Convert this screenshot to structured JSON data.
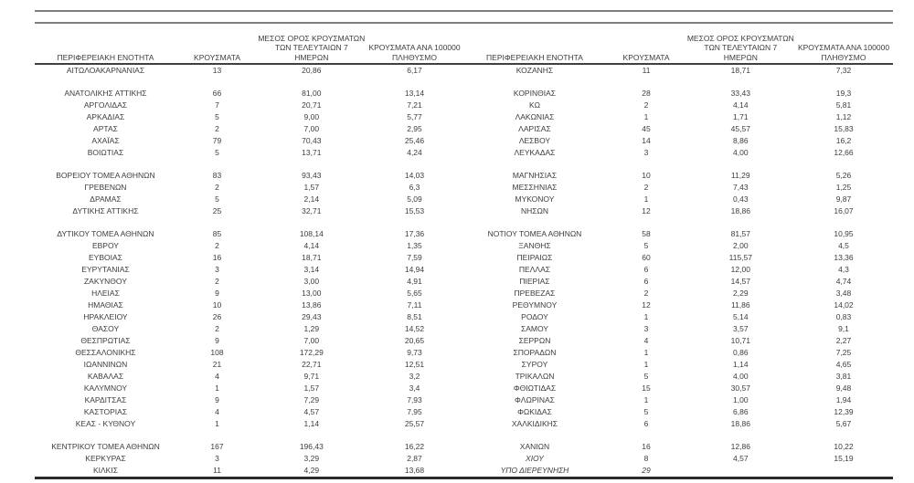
{
  "page": {
    "background": "#ffffff",
    "text_color": "#3d3d3d",
    "thin_rule_color": "#7f7f7f",
    "header_rule_color": "#404040",
    "bottom_rule_color": "#2b2b2b"
  },
  "headers": {
    "region": "ΠΕΡΙΦΕΡΕΙΑΚΗ ΕΝΟΤΗΤΑ",
    "cases": "ΚΡΟΥΣΜΑΤΑ",
    "avg7_lines": [
      "ΜΕΣΟΣ ΟΡΟΣ ΚΡΟΥΣΜΑΤΩΝ",
      "ΤΩΝ ΤΕΛΕΥΤΑΙΩΝ 7",
      "ΗΜΕΡΩΝ"
    ],
    "per100k_lines": [
      "ΚΡΟΥΣΜΑΤΑ ΑΝΑ 100000",
      "ΠΛΗΘΥΣΜΟ"
    ]
  },
  "left_table": {
    "groups": [
      [
        [
          "ΑΙΤΩΛΟΑΚΑΡΝΑΝΙΑΣ",
          "13",
          "20,86",
          "6,17"
        ]
      ],
      [
        [
          "ΑΝΑΤΟΛΙΚΗΣ ΑΤΤΙΚΗΣ",
          "66",
          "81,00",
          "13,14"
        ],
        [
          "ΑΡΓΟΛΙΔΑΣ",
          "7",
          "20,71",
          "7,21"
        ],
        [
          "ΑΡΚΑΔΙΑΣ",
          "5",
          "9,00",
          "5,77"
        ],
        [
          "ΑΡΤΑΣ",
          "2",
          "7,00",
          "2,95"
        ],
        [
          "ΑΧΑΪΑΣ",
          "79",
          "70,43",
          "25,46"
        ],
        [
          "ΒΟΙΩΤΙΑΣ",
          "5",
          "13,71",
          "4,24"
        ]
      ],
      [
        [
          "ΒΟΡΕΙΟΥ ΤΟΜΕΑ ΑΘΗΝΩΝ",
          "83",
          "93,43",
          "14,03"
        ],
        [
          "ΓΡΕΒΕΝΩΝ",
          "2",
          "1,57",
          "6,3"
        ],
        [
          "ΔΡΑΜΑΣ",
          "5",
          "2,14",
          "5,09"
        ],
        [
          "ΔΥΤΙΚΗΣ ΑΤΤΙΚΗΣ",
          "25",
          "32,71",
          "15,53"
        ]
      ],
      [
        [
          "ΔΥΤΙΚΟΥ ΤΟΜΕΑ ΑΘΗΝΩΝ",
          "85",
          "108,14",
          "17,36"
        ],
        [
          "ΕΒΡΟΥ",
          "2",
          "4,14",
          "1,35"
        ],
        [
          "ΕΥΒΟΙΑΣ",
          "16",
          "18,71",
          "7,59"
        ],
        [
          "ΕΥΡΥΤΑΝΙΑΣ",
          "3",
          "3,14",
          "14,94"
        ],
        [
          "ΖΑΚΥΝΘΟΥ",
          "2",
          "3,00",
          "4,91"
        ],
        [
          "ΗΛΕΙΑΣ",
          "9",
          "13,00",
          "5,65"
        ],
        [
          "ΗΜΑΘΙΑΣ",
          "10",
          "13,86",
          "7,11"
        ],
        [
          "ΗΡΑΚΛΕΙΟΥ",
          "26",
          "29,43",
          "8,51"
        ],
        [
          "ΘΑΣΟΥ",
          "2",
          "1,29",
          "14,52"
        ],
        [
          "ΘΕΣΠΡΩΤΙΑΣ",
          "9",
          "7,00",
          "20,65"
        ],
        [
          "ΘΕΣΣΑΛΟΝΙΚΗΣ",
          "108",
          "172,29",
          "9,73"
        ],
        [
          "ΙΩΑΝΝΙΝΩΝ",
          "21",
          "22,71",
          "12,51"
        ],
        [
          "ΚΑΒΑΛΑΣ",
          "4",
          "9,71",
          "3,2"
        ],
        [
          "ΚΑΛΥΜΝΟΥ",
          "1",
          "1,57",
          "3,4"
        ],
        [
          "ΚΑΡΔΙΤΣΑΣ",
          "9",
          "7,29",
          "7,93"
        ],
        [
          "ΚΑΣΤΟΡΙΑΣ",
          "4",
          "4,57",
          "7,95"
        ],
        [
          "ΚΕΑΣ - ΚΥΘΝΟΥ",
          "1",
          "1,14",
          "25,57"
        ]
      ],
      [
        [
          "ΚΕΝΤΡΙΚΟΥ ΤΟΜΕΑ ΑΘΗΝΩΝ",
          "167",
          "196,43",
          "16,22"
        ],
        [
          "ΚΕΡΚΥΡΑΣ",
          "3",
          "3,29",
          "2,87"
        ],
        [
          "ΚΙΛΚΙΣ",
          "11",
          "4,29",
          "13,68"
        ]
      ]
    ]
  },
  "right_table": {
    "groups": [
      [
        [
          "ΚΟΖΑΝΗΣ",
          "11",
          "18,71",
          "7,32"
        ]
      ],
      [
        [
          "ΚΟΡΙΝΘΙΑΣ",
          "28",
          "33,43",
          "19,3"
        ],
        [
          "ΚΩ",
          "2",
          "4,14",
          "5,81"
        ],
        [
          "ΛΑΚΩΝΙΑΣ",
          "1",
          "1,71",
          "1,12"
        ],
        [
          "ΛΑΡΙΣΑΣ",
          "45",
          "45,57",
          "15,83"
        ],
        [
          "ΛΕΣΒΟΥ",
          "14",
          "8,86",
          "16,2"
        ],
        [
          "ΛΕΥΚΑΔΑΣ",
          "3",
          "4,00",
          "12,66"
        ]
      ],
      [
        [
          "ΜΑΓΝΗΣΙΑΣ",
          "10",
          "11,29",
          "5,26"
        ],
        [
          "ΜΕΣΣΗΝΙΑΣ",
          "2",
          "7,43",
          "1,25"
        ],
        [
          "ΜΥΚΟΝΟΥ",
          "1",
          "0,43",
          "9,87"
        ],
        [
          "ΝΗΣΩΝ",
          "12",
          "18,86",
          "16,07"
        ]
      ],
      [
        [
          "ΝΟΤΙΟΥ ΤΟΜΕΑ ΑΘΗΝΩΝ",
          "58",
          "81,57",
          "10,95"
        ],
        [
          "ΞΑΝΘΗΣ",
          "5",
          "2,00",
          "4,5"
        ],
        [
          "ΠΕΙΡΑΙΩΣ",
          "60",
          "115,57",
          "13,36"
        ],
        [
          "ΠΕΛΛΑΣ",
          "6",
          "12,00",
          "4,3"
        ],
        [
          "ΠΙΕΡΙΑΣ",
          "6",
          "14,57",
          "4,74"
        ],
        [
          "ΠΡΕΒΕΖΑΣ",
          "2",
          "2,29",
          "3,48"
        ],
        [
          "ΡΕΘΥΜΝΟΥ",
          "12",
          "11,86",
          "14,02"
        ],
        [
          "ΡΟΔΟΥ",
          "1",
          "5,14",
          "0,83"
        ],
        [
          "ΣΑΜΟΥ",
          "3",
          "3,57",
          "9,1"
        ],
        [
          "ΣΕΡΡΩΝ",
          "4",
          "10,71",
          "2,27"
        ],
        [
          "ΣΠΟΡΑΔΩΝ",
          "1",
          "0,86",
          "7,25"
        ],
        [
          "ΣΥΡΟΥ",
          "1",
          "1,14",
          "4,65"
        ],
        [
          "ΤΡΙΚΑΛΩΝ",
          "5",
          "4,00",
          "3,81"
        ],
        [
          "ΦΘΙΩΤΙΔΑΣ",
          "15",
          "30,57",
          "9,48"
        ],
        [
          "ΦΛΩΡΙΝΑΣ",
          "1",
          "1,00",
          "1,94"
        ],
        [
          "ΦΩΚΙΔΑΣ",
          "5",
          "6,86",
          "12,39"
        ],
        [
          "ΧΑΛΚΙΔΙΚΗΣ",
          "6",
          "18,86",
          "5,67"
        ]
      ],
      [
        [
          "ΧΑΝΙΩΝ",
          "16",
          "12,86",
          "10,22"
        ],
        {
          "cells": [
            "ΧΙΟΥ",
            "8",
            "4,57",
            "15,19"
          ],
          "italic": "name"
        },
        {
          "cells": [
            "ΥΠΟ ΔΙΕΡΕΥΝΗΣΗ",
            "29",
            "",
            ""
          ],
          "italic": "all"
        }
      ]
    ]
  }
}
